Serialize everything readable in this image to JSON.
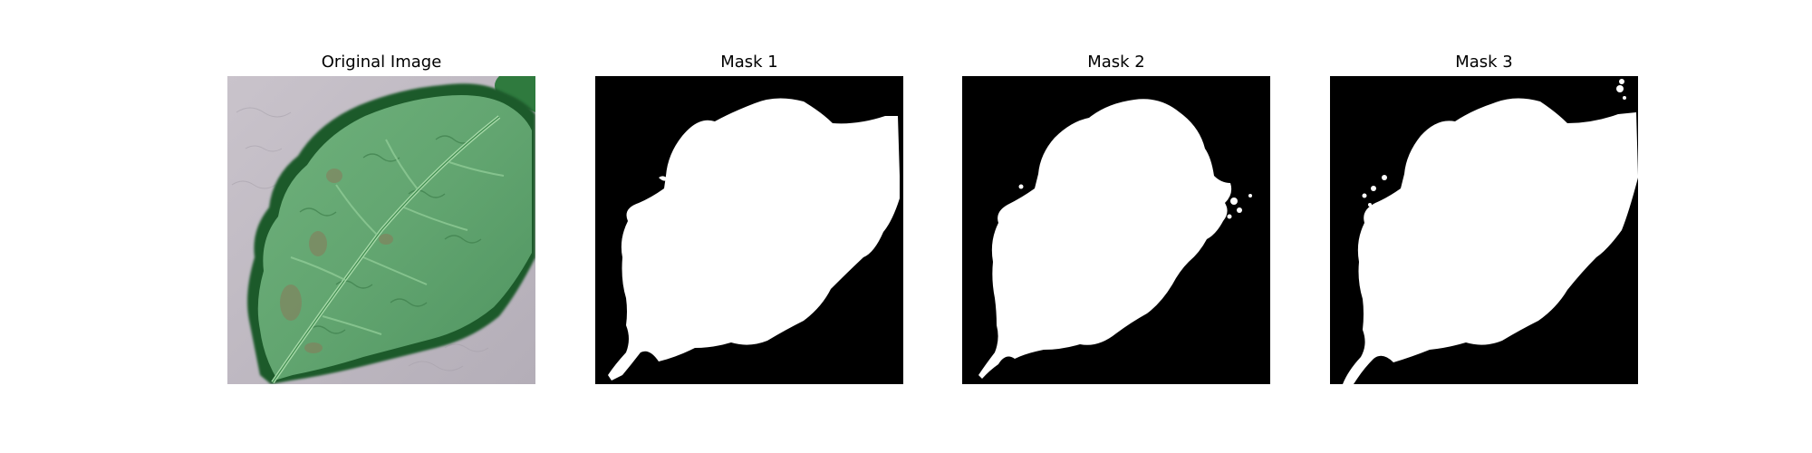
{
  "figure": {
    "panels": [
      {
        "title": "Original Image",
        "kind": "photo"
      },
      {
        "title": "Mask 1",
        "kind": "mask"
      },
      {
        "title": "Mask 2",
        "kind": "mask"
      },
      {
        "title": "Mask 3",
        "kind": "mask"
      }
    ]
  },
  "colors": {
    "background": "#ffffff",
    "mask_foreground": "#ffffff",
    "mask_background": "#000000",
    "leaf_green": "#5fa26c",
    "leaf_dark": "#1f5a2c",
    "surface_gray": "#b9b3bc"
  }
}
